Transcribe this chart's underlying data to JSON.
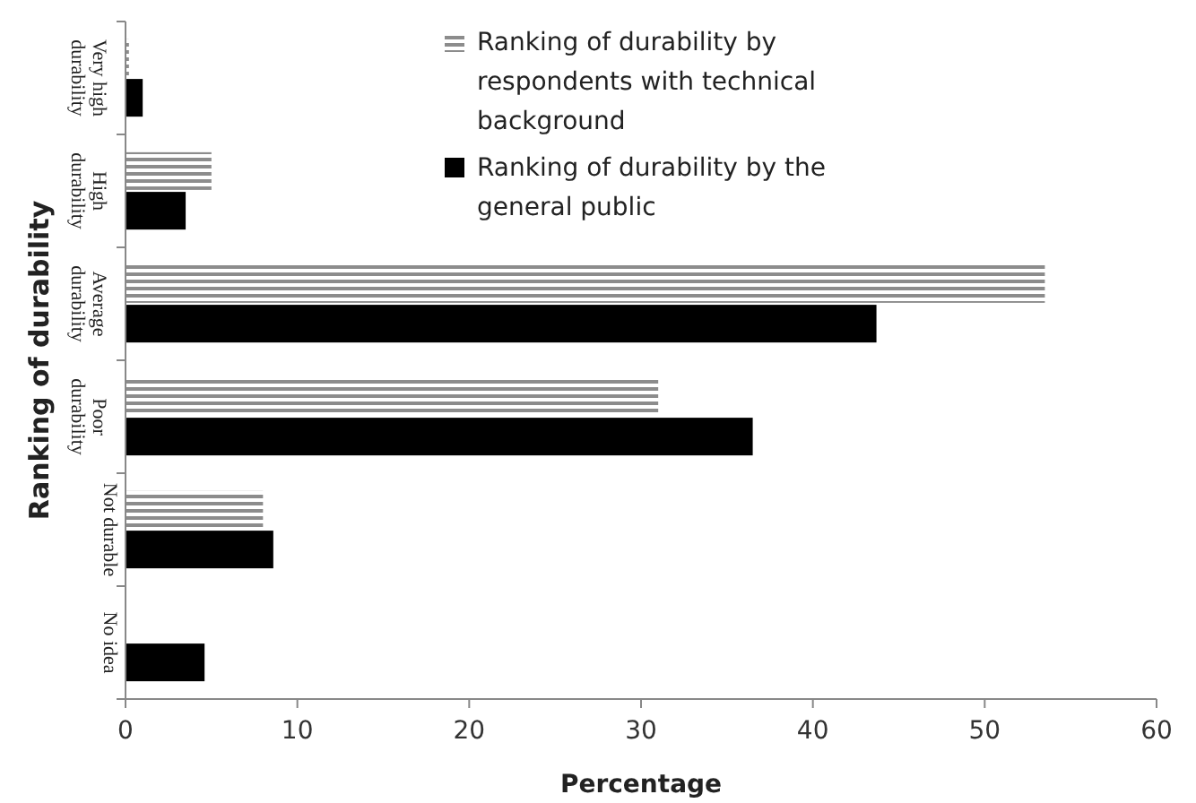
{
  "chart_data": {
    "type": "bar",
    "orientation": "horizontal",
    "xlabel": "Percentage",
    "ylabel": "Ranking of durability",
    "categories": [
      "Very high durability",
      "High durability",
      "Average durability",
      "Poor durability",
      "Not durable",
      "No idea"
    ],
    "series": [
      {
        "name": "Ranking of durability by respondents with technical background",
        "color": "#8c8c8c",
        "values": [
          0.2,
          5,
          53.5,
          31,
          8,
          0
        ]
      },
      {
        "name": "Ranking of durability by the general public",
        "color": "#000000",
        "values": [
          1,
          3.5,
          43.7,
          36.5,
          8.6,
          4.6
        ]
      }
    ],
    "xlim": [
      0,
      60
    ],
    "xticks": [
      0,
      10,
      20,
      30,
      40,
      50,
      60
    ],
    "grid": false,
    "legend": "top right"
  }
}
